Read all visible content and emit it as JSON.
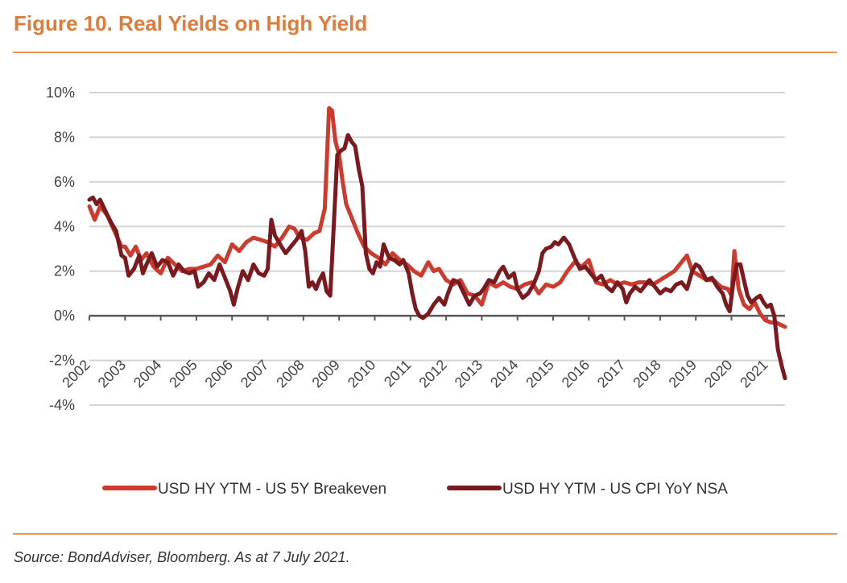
{
  "header": {
    "title": "Figure 10. Real Yields on High Yield"
  },
  "footer": {
    "source": "Source: BondAdviser, Bloomberg. As at 7 July 2021."
  },
  "chart_data": {
    "type": "line",
    "title": "Figure 10. Real Yields on High Yield",
    "xlabel": "",
    "ylabel": "",
    "xlim": [
      2002,
      2021.5
    ],
    "ylim": [
      -4,
      10
    ],
    "y_ticks": [
      10,
      8,
      6,
      4,
      2,
      0,
      -2,
      -4
    ],
    "y_tick_labels": [
      "10%",
      "8%",
      "6%",
      "4%",
      "2%",
      "0%",
      "-2%",
      "-4%"
    ],
    "x_ticks": [
      2002,
      2003,
      2004,
      2005,
      2006,
      2007,
      2008,
      2009,
      2010,
      2011,
      2012,
      2013,
      2014,
      2015,
      2016,
      2017,
      2018,
      2019,
      2020,
      2021
    ],
    "x_tick_labels": [
      "2002",
      "2003",
      "2004",
      "2005",
      "2006",
      "2007",
      "2008",
      "2009",
      "2010",
      "2011",
      "2012",
      "2013",
      "2014",
      "2015",
      "2016",
      "2017",
      "2018",
      "2019",
      "2020",
      "2021"
    ],
    "grid": true,
    "legend_position": "bottom",
    "series": [
      {
        "name": "USD HY YTM - US 5Y Breakeven",
        "color": "#CC3B2E",
        "points": [
          [
            2002.0,
            4.9
          ],
          [
            2002.15,
            4.3
          ],
          [
            2002.3,
            4.9
          ],
          [
            2002.5,
            4.5
          ],
          [
            2002.7,
            3.8
          ],
          [
            2002.9,
            3.1
          ],
          [
            2003.0,
            3.1
          ],
          [
            2003.15,
            2.7
          ],
          [
            2003.3,
            3.1
          ],
          [
            2003.45,
            2.5
          ],
          [
            2003.6,
            2.8
          ],
          [
            2003.8,
            2.2
          ],
          [
            2004.0,
            1.9
          ],
          [
            2004.2,
            2.6
          ],
          [
            2004.4,
            2.3
          ],
          [
            2004.6,
            2.0
          ],
          [
            2004.8,
            2.1
          ],
          [
            2005.0,
            2.1
          ],
          [
            2005.2,
            2.2
          ],
          [
            2005.4,
            2.3
          ],
          [
            2005.6,
            2.7
          ],
          [
            2005.8,
            2.4
          ],
          [
            2006.0,
            3.2
          ],
          [
            2006.2,
            2.9
          ],
          [
            2006.4,
            3.3
          ],
          [
            2006.6,
            3.5
          ],
          [
            2006.8,
            3.4
          ],
          [
            2007.0,
            3.3
          ],
          [
            2007.2,
            3.1
          ],
          [
            2007.4,
            3.5
          ],
          [
            2007.6,
            4.0
          ],
          [
            2007.75,
            3.9
          ],
          [
            2007.9,
            3.5
          ],
          [
            2008.1,
            3.4
          ],
          [
            2008.3,
            3.7
          ],
          [
            2008.45,
            3.8
          ],
          [
            2008.6,
            4.8
          ],
          [
            2008.72,
            9.3
          ],
          [
            2008.8,
            9.2
          ],
          [
            2008.9,
            7.8
          ],
          [
            2009.0,
            7.2
          ],
          [
            2009.1,
            6.0
          ],
          [
            2009.2,
            5.0
          ],
          [
            2009.35,
            4.4
          ],
          [
            2009.5,
            3.8
          ],
          [
            2009.7,
            3.1
          ],
          [
            2009.9,
            2.8
          ],
          [
            2010.1,
            2.6
          ],
          [
            2010.3,
            2.3
          ],
          [
            2010.5,
            2.8
          ],
          [
            2010.7,
            2.5
          ],
          [
            2010.9,
            2.3
          ],
          [
            2011.1,
            2.0
          ],
          [
            2011.3,
            1.8
          ],
          [
            2011.5,
            2.4
          ],
          [
            2011.65,
            2.0
          ],
          [
            2011.8,
            2.1
          ],
          [
            2012.0,
            1.6
          ],
          [
            2012.2,
            1.4
          ],
          [
            2012.4,
            1.6
          ],
          [
            2012.6,
            1.0
          ],
          [
            2012.8,
            0.9
          ],
          [
            2013.0,
            0.5
          ],
          [
            2013.2,
            1.5
          ],
          [
            2013.4,
            1.3
          ],
          [
            2013.6,
            1.5
          ],
          [
            2013.8,
            1.3
          ],
          [
            2014.0,
            1.2
          ],
          [
            2014.2,
            1.4
          ],
          [
            2014.4,
            1.5
          ],
          [
            2014.6,
            1.0
          ],
          [
            2014.8,
            1.4
          ],
          [
            2015.0,
            1.3
          ],
          [
            2015.2,
            1.5
          ],
          [
            2015.4,
            2.0
          ],
          [
            2015.6,
            2.4
          ],
          [
            2015.8,
            2.2
          ],
          [
            2016.0,
            2.5
          ],
          [
            2016.2,
            1.5
          ],
          [
            2016.4,
            1.4
          ],
          [
            2016.6,
            1.6
          ],
          [
            2016.8,
            1.4
          ],
          [
            2017.0,
            1.5
          ],
          [
            2017.2,
            1.4
          ],
          [
            2017.4,
            1.5
          ],
          [
            2017.6,
            1.5
          ],
          [
            2017.8,
            1.4
          ],
          [
            2018.0,
            1.6
          ],
          [
            2018.2,
            1.8
          ],
          [
            2018.4,
            2.0
          ],
          [
            2018.6,
            2.4
          ],
          [
            2018.75,
            2.7
          ],
          [
            2018.9,
            2.0
          ],
          [
            2019.1,
            1.8
          ],
          [
            2019.3,
            1.6
          ],
          [
            2019.5,
            1.6
          ],
          [
            2019.7,
            1.3
          ],
          [
            2019.9,
            1.2
          ],
          [
            2020.0,
            0.9
          ],
          [
            2020.08,
            2.9
          ],
          [
            2020.2,
            1.2
          ],
          [
            2020.35,
            0.5
          ],
          [
            2020.5,
            0.3
          ],
          [
            2020.65,
            0.6
          ],
          [
            2020.8,
            0.1
          ],
          [
            2020.95,
            -0.2
          ],
          [
            2021.1,
            -0.3
          ],
          [
            2021.25,
            -0.3
          ],
          [
            2021.5,
            -0.5
          ]
        ]
      },
      {
        "name": "USD HY YTM - US CPI YoY NSA",
        "color": "#7B1A1E",
        "points": [
          [
            2002.0,
            5.2
          ],
          [
            2002.1,
            5.3
          ],
          [
            2002.2,
            5.0
          ],
          [
            2002.3,
            5.2
          ],
          [
            2002.45,
            4.7
          ],
          [
            2002.6,
            4.2
          ],
          [
            2002.75,
            3.8
          ],
          [
            2002.9,
            2.7
          ],
          [
            2003.0,
            2.6
          ],
          [
            2003.1,
            1.8
          ],
          [
            2003.25,
            2.1
          ],
          [
            2003.4,
            2.7
          ],
          [
            2003.5,
            1.9
          ],
          [
            2003.6,
            2.3
          ],
          [
            2003.75,
            2.8
          ],
          [
            2003.9,
            2.2
          ],
          [
            2004.05,
            2.5
          ],
          [
            2004.2,
            2.4
          ],
          [
            2004.35,
            1.8
          ],
          [
            2004.5,
            2.3
          ],
          [
            2004.65,
            2.0
          ],
          [
            2004.8,
            1.9
          ],
          [
            2004.95,
            2.0
          ],
          [
            2005.05,
            1.3
          ],
          [
            2005.2,
            1.5
          ],
          [
            2005.35,
            1.9
          ],
          [
            2005.5,
            1.6
          ],
          [
            2005.65,
            2.3
          ],
          [
            2005.8,
            1.7
          ],
          [
            2005.95,
            1.1
          ],
          [
            2006.05,
            0.5
          ],
          [
            2006.15,
            1.2
          ],
          [
            2006.3,
            2.0
          ],
          [
            2006.45,
            1.6
          ],
          [
            2006.6,
            2.3
          ],
          [
            2006.75,
            1.9
          ],
          [
            2006.9,
            1.8
          ],
          [
            2007.0,
            2.1
          ],
          [
            2007.1,
            4.3
          ],
          [
            2007.2,
            3.6
          ],
          [
            2007.35,
            3.2
          ],
          [
            2007.5,
            2.8
          ],
          [
            2007.65,
            3.1
          ],
          [
            2007.8,
            3.4
          ],
          [
            2007.95,
            3.8
          ],
          [
            2008.05,
            2.9
          ],
          [
            2008.15,
            1.3
          ],
          [
            2008.25,
            1.5
          ],
          [
            2008.35,
            1.2
          ],
          [
            2008.45,
            1.6
          ],
          [
            2008.55,
            1.9
          ],
          [
            2008.65,
            1.1
          ],
          [
            2008.75,
            0.9
          ],
          [
            2008.85,
            4.0
          ],
          [
            2008.95,
            7.2
          ],
          [
            2009.05,
            7.4
          ],
          [
            2009.15,
            7.5
          ],
          [
            2009.25,
            8.1
          ],
          [
            2009.35,
            7.8
          ],
          [
            2009.45,
            7.6
          ],
          [
            2009.55,
            6.6
          ],
          [
            2009.65,
            5.8
          ],
          [
            2009.75,
            2.8
          ],
          [
            2009.85,
            2.1
          ],
          [
            2009.95,
            1.9
          ],
          [
            2010.05,
            2.4
          ],
          [
            2010.15,
            2.2
          ],
          [
            2010.25,
            3.2
          ],
          [
            2010.4,
            2.6
          ],
          [
            2010.55,
            2.5
          ],
          [
            2010.7,
            2.3
          ],
          [
            2010.8,
            2.5
          ],
          [
            2010.95,
            1.9
          ],
          [
            2011.05,
            1.0
          ],
          [
            2011.15,
            0.3
          ],
          [
            2011.25,
            0.0
          ],
          [
            2011.35,
            -0.1
          ],
          [
            2011.5,
            0.1
          ],
          [
            2011.65,
            0.5
          ],
          [
            2011.8,
            0.8
          ],
          [
            2011.95,
            0.5
          ],
          [
            2012.05,
            1.0
          ],
          [
            2012.2,
            1.6
          ],
          [
            2012.35,
            1.5
          ],
          [
            2012.5,
            1.0
          ],
          [
            2012.65,
            0.5
          ],
          [
            2012.8,
            0.9
          ],
          [
            2012.95,
            1.0
          ],
          [
            2013.05,
            1.2
          ],
          [
            2013.2,
            1.6
          ],
          [
            2013.35,
            1.5
          ],
          [
            2013.5,
            2.0
          ],
          [
            2013.6,
            2.2
          ],
          [
            2013.75,
            1.7
          ],
          [
            2013.9,
            1.9
          ],
          [
            2014.0,
            1.2
          ],
          [
            2014.15,
            0.8
          ],
          [
            2014.3,
            1.0
          ],
          [
            2014.45,
            1.4
          ],
          [
            2014.6,
            2.0
          ],
          [
            2014.7,
            2.8
          ],
          [
            2014.8,
            3.0
          ],
          [
            2014.95,
            3.1
          ],
          [
            2015.05,
            3.3
          ],
          [
            2015.15,
            3.2
          ],
          [
            2015.3,
            3.5
          ],
          [
            2015.45,
            3.2
          ],
          [
            2015.6,
            2.6
          ],
          [
            2015.75,
            2.1
          ],
          [
            2015.9,
            2.2
          ],
          [
            2016.05,
            1.9
          ],
          [
            2016.2,
            1.6
          ],
          [
            2016.35,
            1.8
          ],
          [
            2016.5,
            1.3
          ],
          [
            2016.65,
            1.1
          ],
          [
            2016.8,
            1.5
          ],
          [
            2016.95,
            1.2
          ],
          [
            2017.05,
            0.6
          ],
          [
            2017.15,
            1.0
          ],
          [
            2017.3,
            1.3
          ],
          [
            2017.45,
            1.1
          ],
          [
            2017.6,
            1.4
          ],
          [
            2017.7,
            1.6
          ],
          [
            2017.85,
            1.3
          ],
          [
            2018.0,
            1.0
          ],
          [
            2018.15,
            1.2
          ],
          [
            2018.3,
            1.1
          ],
          [
            2018.45,
            1.4
          ],
          [
            2018.6,
            1.5
          ],
          [
            2018.75,
            1.2
          ],
          [
            2018.9,
            2.0
          ],
          [
            2019.0,
            2.3
          ],
          [
            2019.1,
            2.2
          ],
          [
            2019.2,
            1.9
          ],
          [
            2019.3,
            1.6
          ],
          [
            2019.45,
            1.7
          ],
          [
            2019.6,
            1.3
          ],
          [
            2019.75,
            1.0
          ],
          [
            2019.85,
            0.5
          ],
          [
            2019.95,
            0.2
          ],
          [
            2020.05,
            1.5
          ],
          [
            2020.15,
            2.3
          ],
          [
            2020.25,
            2.3
          ],
          [
            2020.35,
            1.6
          ],
          [
            2020.45,
            0.9
          ],
          [
            2020.55,
            0.6
          ],
          [
            2020.7,
            0.8
          ],
          [
            2020.8,
            0.9
          ],
          [
            2020.9,
            0.6
          ],
          [
            2021.0,
            0.4
          ],
          [
            2021.1,
            0.5
          ],
          [
            2021.2,
            0.0
          ],
          [
            2021.3,
            -1.5
          ],
          [
            2021.4,
            -2.2
          ],
          [
            2021.5,
            -2.8
          ]
        ]
      }
    ]
  }
}
